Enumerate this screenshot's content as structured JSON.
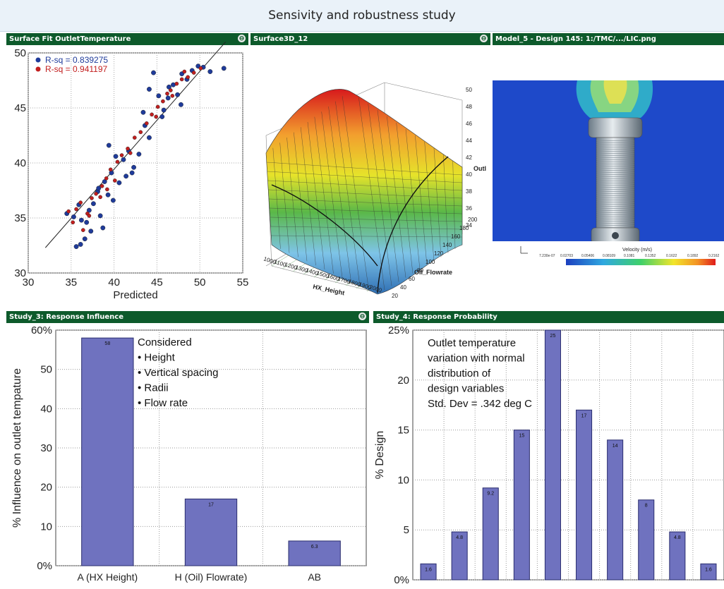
{
  "window": {
    "title": "Sensivity and robustness study"
  },
  "panels": {
    "p1": {
      "title": "Surface Fit OutletTemperature"
    },
    "p2": {
      "title": "Surface3D_12"
    },
    "p3": {
      "title": "Model_5 - Design 145: 1:/TMC/.../LIC.png"
    },
    "p4": {
      "title": "Study_3: Response Influence"
    },
    "p5": {
      "title": "Study_4: Response Probability"
    }
  },
  "icons": {
    "close": "close-circle-icon",
    "close_glyph": "⊖"
  },
  "surface3d": {
    "axis_labels": {
      "x": "HX_Height",
      "y": "Oil_Flowrate",
      "z": "Outl"
    },
    "x_ticks": [
      "1000",
      "1100",
      "1200",
      "1300",
      "1400",
      "1500",
      "1600",
      "1700",
      "1800",
      "1900",
      "2000"
    ],
    "y_ticks": [
      "20",
      "40",
      "60",
      "80",
      "100",
      "120",
      "140",
      "160",
      "180",
      "200"
    ],
    "z_ticks": [
      "34",
      "36",
      "38",
      "40",
      "42",
      "44",
      "46",
      "48",
      "50"
    ]
  },
  "image_view": {
    "legend_title": "Velocity (m/s)",
    "legend_ticks": [
      "7.230e-07",
      "0.02703",
      "0.05406",
      "0.08109",
      "0.1081",
      "0.1352",
      "0.1622",
      "0.1892",
      "0.2162"
    ]
  },
  "colors": {
    "bar_fill": "#6f72bf",
    "bar_stroke": "#2a2d6e",
    "series_blue": "#1f3b9a",
    "series_red": "#c21f1f",
    "titlebar": "#0d5a2b"
  },
  "chart_data": [
    {
      "type": "scatter",
      "xlabel": "Predicted",
      "ylabel": "",
      "xlim": [
        30,
        55
      ],
      "ylim": [
        30,
        50
      ],
      "x_ticks": [
        30,
        35,
        40,
        45,
        50,
        55
      ],
      "y_ticks": [
        30,
        35,
        40,
        45,
        50
      ],
      "grid": true,
      "legend": "top-left",
      "fit_line": {
        "x": [
          32,
          53
        ],
        "y": [
          32.3,
          51
        ]
      },
      "series": [
        {
          "name": "R-sq = 0.839275",
          "color": "#1f3b9a",
          "x": [
            34.5,
            35.3,
            35.9,
            36.2,
            36.6,
            37.1,
            37.6,
            38.1,
            38.4,
            38.9,
            39.3,
            39.7,
            40.2,
            40.6,
            41.1,
            41.7,
            42.3,
            42.9,
            43.4,
            44.1,
            44.6,
            45.2,
            45.8,
            46.3,
            46.9,
            47.4,
            47.9,
            48.5,
            49.1,
            49.8,
            50.4,
            51.2,
            52.8,
            36.1,
            37.3,
            38.7,
            39.9,
            41.4,
            43.6,
            45.6,
            46.4,
            47.8,
            35.6,
            36.8,
            38.2,
            44.1,
            42.1,
            39.4
          ],
          "y": [
            35.4,
            35.1,
            36.2,
            34.8,
            33.1,
            35.7,
            36.3,
            37.4,
            35.2,
            38.3,
            37.1,
            39.1,
            40.6,
            38.2,
            40.3,
            41.1,
            39.6,
            40.8,
            44.6,
            42.3,
            48.2,
            46.1,
            44.8,
            45.9,
            47.1,
            46.2,
            48.1,
            47.6,
            48.4,
            48.8,
            48.7,
            48.3,
            48.6,
            32.6,
            33.8,
            34.1,
            36.6,
            38.8,
            43.4,
            44.2,
            46.9,
            45.3,
            32.4,
            34.6,
            37.7,
            46.7,
            39.1,
            41.6
          ]
        },
        {
          "name": "R-sq = 0.941197",
          "color": "#c21f1f",
          "x": [
            34.7,
            35.6,
            36.1,
            36.9,
            37.4,
            37.9,
            38.6,
            39.1,
            39.6,
            40.4,
            40.9,
            41.6,
            42.4,
            43.1,
            43.8,
            44.4,
            45.1,
            45.7,
            46.2,
            46.8,
            47.3,
            47.9,
            48.6,
            49.3,
            50.1,
            35.2,
            37.1,
            38.4,
            40.1,
            41.9,
            44.9,
            46.6,
            48.2,
            36.4,
            39.2
          ],
          "y": [
            35.6,
            35.8,
            36.4,
            35.4,
            36.8,
            37.2,
            37.9,
            38.6,
            39.4,
            40.1,
            40.7,
            41.3,
            42.3,
            42.8,
            43.6,
            44.4,
            45.1,
            45.6,
            46.3,
            46.1,
            47.2,
            47.6,
            47.8,
            48.2,
            48.6,
            34.6,
            35.2,
            36.9,
            38.4,
            40.9,
            44.2,
            46.6,
            48.3,
            33.9,
            37.6
          ]
        }
      ]
    },
    {
      "type": "bar",
      "categories": [
        "A (HX Height)",
        "H (Oil) Flowrate)",
        "AB"
      ],
      "values": [
        58,
        17,
        6.3
      ],
      "value_labels": [
        "58",
        "17",
        "6.3"
      ],
      "ylabel": "% Influence on outlet tempature",
      "ylim": [
        0,
        60
      ],
      "y_ticks": [
        "0%",
        "10",
        "20",
        "30",
        "40",
        "50",
        "60%"
      ],
      "grid": true,
      "annotation": [
        "Considered",
        "• Height",
        "• Vertical spacing",
        "• Radii",
        "• Flow rate"
      ]
    },
    {
      "type": "bar",
      "values": [
        1.6,
        4.8,
        9.2,
        15,
        25,
        17,
        14,
        8,
        4.8,
        1.6
      ],
      "value_labels": [
        "1.6",
        "4.8",
        "9.2",
        "15",
        "25",
        "17",
        "14",
        "8",
        "4.8",
        "1.6"
      ],
      "ylabel": "% Design",
      "ylim": [
        0,
        25
      ],
      "y_ticks": [
        "0%",
        "5",
        "10",
        "15",
        "20",
        "25%"
      ],
      "grid": true,
      "annotation": [
        "Outlet temperature",
        "variation with normal",
        "distribution of",
        "design variables",
        "Std. Dev = .342 deg C"
      ]
    }
  ]
}
